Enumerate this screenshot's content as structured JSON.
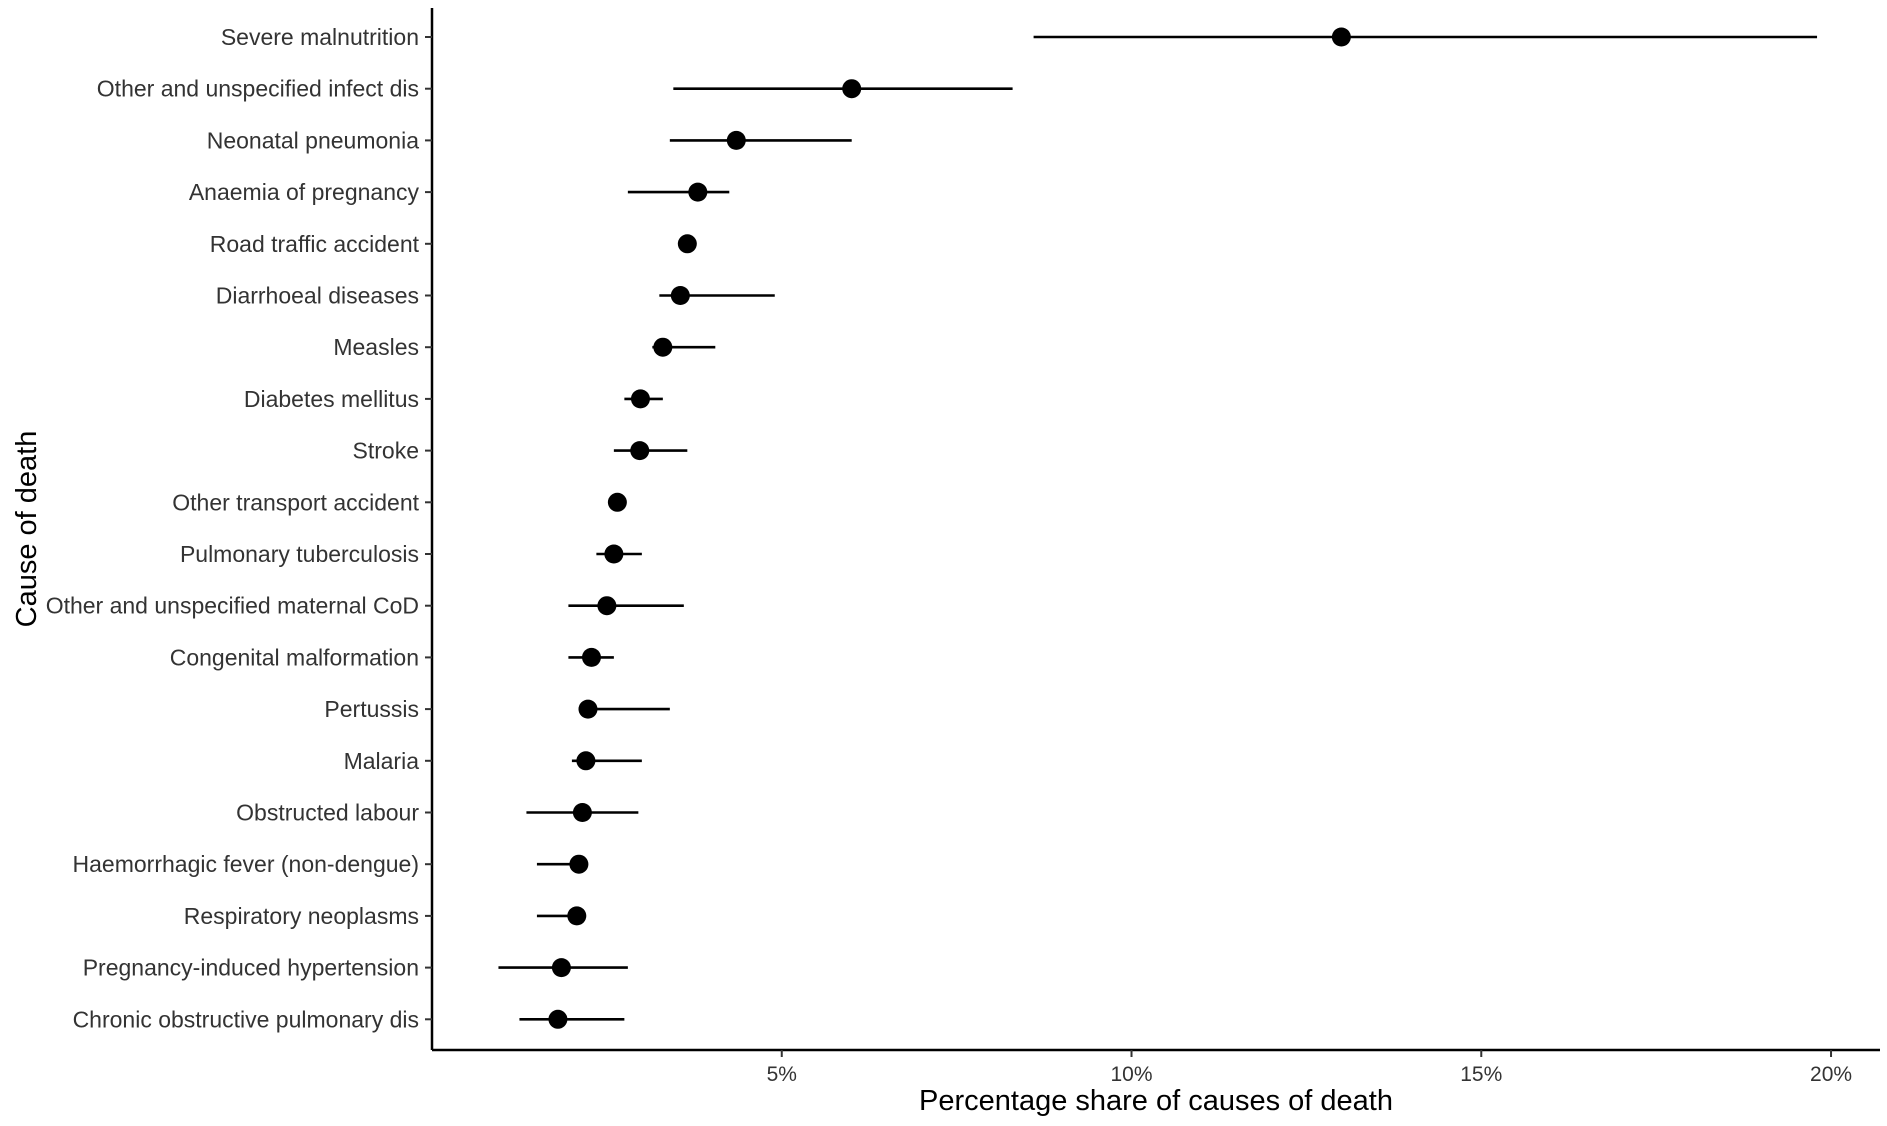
{
  "chart_data": {
    "type": "scatter",
    "title": "",
    "xlabel": "Percentage share of causes of death",
    "ylabel": "Cause of death",
    "xlim": [
      0,
      20.7
    ],
    "x_ticks": [
      5,
      10,
      15,
      20
    ],
    "x_tick_labels": [
      "5%",
      "10%",
      "15%",
      "20%"
    ],
    "grid": false,
    "legend": "none",
    "point_color": "#000000",
    "line_color": "#000000",
    "categories": [
      "Severe malnutrition",
      "Other and unspecified infect dis",
      "Neonatal pneumonia",
      "Anaemia of pregnancy",
      "Road traffic accident",
      "Diarrhoeal diseases",
      "Measles",
      "Diabetes mellitus",
      "Stroke",
      "Other transport accident",
      "Pulmonary tuberculosis",
      "Other and unspecified maternal CoD",
      "Congenital malformation",
      "Pertussis",
      "Malaria",
      "Obstructed labour",
      "Haemorrhagic fever (non-dengue)",
      "Respiratory neoplasms",
      "Pregnancy-induced hypertension",
      "Chronic obstructive pulmonary dis"
    ],
    "values": [
      13.0,
      6.0,
      4.35,
      3.8,
      3.65,
      3.55,
      3.3,
      2.98,
      2.97,
      2.65,
      2.6,
      2.5,
      2.28,
      2.23,
      2.2,
      2.15,
      2.1,
      2.07,
      1.85,
      1.8
    ],
    "lower": [
      8.6,
      3.45,
      3.4,
      2.8,
      null,
      3.25,
      3.15,
      2.75,
      2.6,
      null,
      2.35,
      1.95,
      1.95,
      2.3,
      2.0,
      1.35,
      1.5,
      1.5,
      0.95,
      1.25
    ],
    "upper": [
      19.8,
      8.3,
      6.0,
      4.25,
      null,
      4.9,
      4.05,
      3.3,
      3.65,
      null,
      3.0,
      3.6,
      2.6,
      3.4,
      3.0,
      2.95,
      2.15,
      2.15,
      2.8,
      2.75
    ]
  }
}
